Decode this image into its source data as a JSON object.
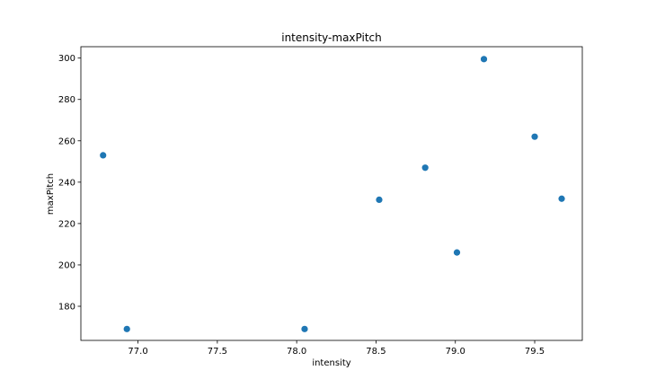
{
  "chart_data": {
    "type": "scatter",
    "title": "intensity-maxPitch",
    "xlabel": "intensity",
    "ylabel": "maxPitch",
    "xlim": [
      76.64,
      79.8
    ],
    "ylim": [
      163.5,
      305.5
    ],
    "xticks": [
      77.0,
      77.5,
      78.0,
      78.5,
      79.0,
      79.5
    ],
    "xtick_labels": [
      "77.0",
      "77.5",
      "78.0",
      "78.5",
      "79.0",
      "79.5"
    ],
    "yticks": [
      180,
      200,
      220,
      240,
      260,
      280,
      300
    ],
    "ytick_labels": [
      "180",
      "200",
      "220",
      "240",
      "260",
      "280",
      "300"
    ],
    "grid": false,
    "marker_color": "#1f77b4",
    "points": [
      {
        "x": 76.78,
        "y": 253
      },
      {
        "x": 76.93,
        "y": 169
      },
      {
        "x": 78.05,
        "y": 169
      },
      {
        "x": 78.52,
        "y": 231.5
      },
      {
        "x": 78.81,
        "y": 247
      },
      {
        "x": 79.01,
        "y": 206
      },
      {
        "x": 79.18,
        "y": 299.5
      },
      {
        "x": 79.5,
        "y": 262
      },
      {
        "x": 79.67,
        "y": 232
      }
    ]
  }
}
